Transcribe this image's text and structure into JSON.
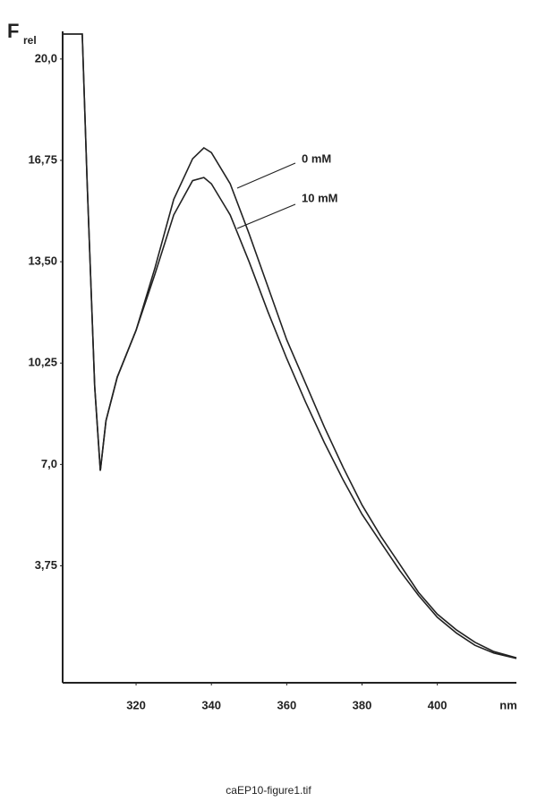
{
  "chart_data": {
    "type": "line",
    "ylabel": "F",
    "ylabel_subscript": "rel",
    "xlabel": "nm",
    "caption": "caEP10-figure1.tif",
    "x": [
      300.5,
      305,
      305.7,
      307,
      309,
      310.5,
      312,
      315,
      320,
      325,
      330,
      335,
      338,
      340,
      345,
      350,
      355,
      360,
      365,
      370,
      375,
      380,
      385,
      390,
      395,
      400,
      405,
      410,
      415,
      421
    ],
    "series": [
      {
        "name": "0 mM",
        "color": "#222222",
        "values": [
          20.8,
          20.8,
          20.8,
          16.1,
          9.5,
          6.8,
          8.4,
          9.8,
          11.3,
          13.3,
          15.5,
          16.8,
          17.15,
          17.0,
          16.0,
          14.4,
          12.7,
          11.0,
          9.6,
          8.2,
          6.9,
          5.7,
          4.7,
          3.8,
          2.9,
          2.2,
          1.7,
          1.3,
          1.0,
          0.8
        ]
      },
      {
        "name": "10 mM",
        "color": "#222222",
        "values": [
          20.8,
          20.8,
          20.8,
          16.1,
          9.5,
          6.8,
          8.4,
          9.8,
          11.3,
          13.1,
          15.0,
          16.1,
          16.2,
          16.0,
          15.0,
          13.5,
          11.9,
          10.4,
          9.0,
          7.7,
          6.5,
          5.4,
          4.5,
          3.6,
          2.8,
          2.1,
          1.6,
          1.2,
          0.95,
          0.78
        ]
      }
    ],
    "xlim": [
      300.5,
      421
    ],
    "xticks": [
      320,
      340,
      360,
      380,
      400
    ],
    "ylim": [
      0,
      20.8
    ],
    "yticks": [
      {
        "value": 3.75,
        "label": "3,75"
      },
      {
        "value": 7.0,
        "label": "7,0"
      },
      {
        "value": 10.25,
        "label": "10,25"
      },
      {
        "value": 13.5,
        "label": "13,50"
      },
      {
        "value": 16.75,
        "label": "16,75"
      },
      {
        "value": 20.0,
        "label": "20,0"
      }
    ],
    "grid": false
  }
}
